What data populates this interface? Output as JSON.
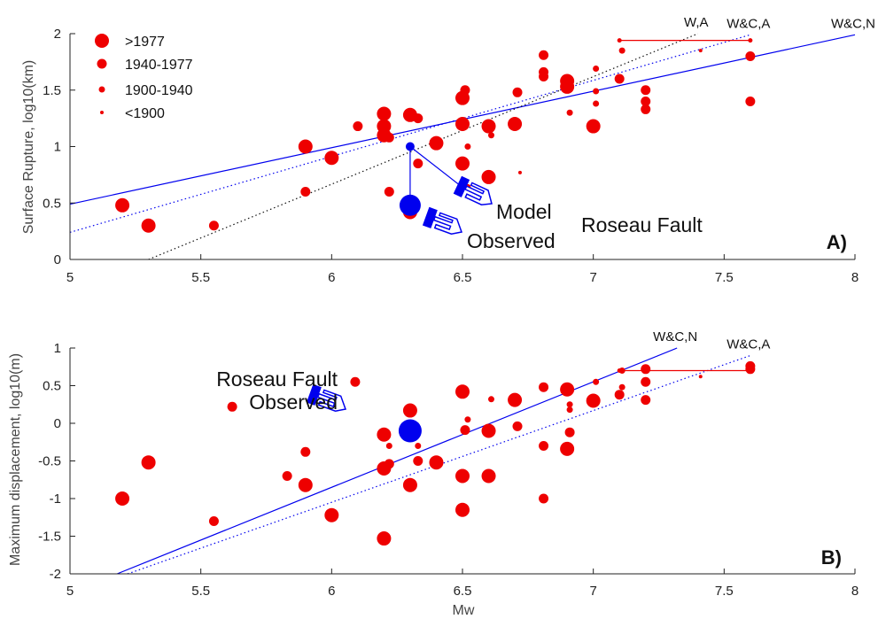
{
  "chart_data": [
    {
      "type": "scatter",
      "panel_label": "A)",
      "xlim": [
        5,
        8
      ],
      "ylim": [
        0,
        2
      ],
      "xticks": [
        "5",
        "5.5",
        "6",
        "6.5",
        "7",
        "7.5",
        "8"
      ],
      "yticks": [
        "0",
        "0.5",
        "1",
        "1.5",
        "2"
      ],
      "xlabel": "",
      "ylabel": "Surface Rupture, log10(km)",
      "legend": {
        "placement": "top-left",
        "entries": [
          {
            "label": ">1977",
            "size": "xl"
          },
          {
            "label": "1940-1977",
            "size": "l"
          },
          {
            "label": "1900-1940",
            "size": "m"
          },
          {
            "label": "<1900",
            "size": "s"
          }
        ]
      },
      "points": [
        {
          "x": 5.2,
          "y": 0.48,
          "size": "xl"
        },
        {
          "x": 5.3,
          "y": 0.3,
          "size": "xl"
        },
        {
          "x": 5.55,
          "y": 0.3,
          "size": "l"
        },
        {
          "x": 5.9,
          "y": 1.0,
          "size": "xl"
        },
        {
          "x": 5.9,
          "y": 0.6,
          "size": "l"
        },
        {
          "x": 6.0,
          "y": 0.9,
          "size": "xl"
        },
        {
          "x": 6.1,
          "y": 1.18,
          "size": "l"
        },
        {
          "x": 6.2,
          "y": 1.29,
          "size": "xl"
        },
        {
          "x": 6.2,
          "y": 1.18,
          "size": "xl"
        },
        {
          "x": 6.2,
          "y": 1.1,
          "size": "xl"
        },
        {
          "x": 6.22,
          "y": 1.08,
          "size": "l"
        },
        {
          "x": 6.22,
          "y": 0.6,
          "size": "l"
        },
        {
          "x": 6.3,
          "y": 1.28,
          "size": "xl"
        },
        {
          "x": 6.33,
          "y": 1.25,
          "size": "l"
        },
        {
          "x": 6.33,
          "y": 0.85,
          "size": "l"
        },
        {
          "x": 6.3,
          "y": 0.42,
          "size": "xl"
        },
        {
          "x": 6.4,
          "y": 1.03,
          "size": "xl"
        },
        {
          "x": 6.5,
          "y": 1.43,
          "size": "xl"
        },
        {
          "x": 6.51,
          "y": 1.5,
          "size": "l"
        },
        {
          "x": 6.5,
          "y": 1.2,
          "size": "xl"
        },
        {
          "x": 6.52,
          "y": 1.0,
          "size": "m"
        },
        {
          "x": 6.5,
          "y": 0.85,
          "size": "xl"
        },
        {
          "x": 6.52,
          "y": 0.64,
          "size": "m"
        },
        {
          "x": 6.6,
          "y": 1.18,
          "size": "xl"
        },
        {
          "x": 6.61,
          "y": 1.1,
          "size": "m"
        },
        {
          "x": 6.6,
          "y": 0.73,
          "size": "xl"
        },
        {
          "x": 6.7,
          "y": 1.2,
          "size": "xl"
        },
        {
          "x": 6.71,
          "y": 1.48,
          "size": "l"
        },
        {
          "x": 6.72,
          "y": 0.77,
          "size": "s"
        },
        {
          "x": 6.81,
          "y": 1.81,
          "size": "l"
        },
        {
          "x": 6.81,
          "y": 1.66,
          "size": "l"
        },
        {
          "x": 6.81,
          "y": 1.62,
          "size": "l"
        },
        {
          "x": 6.9,
          "y": 1.58,
          "size": "xl"
        },
        {
          "x": 6.9,
          "y": 1.53,
          "size": "xl"
        },
        {
          "x": 6.91,
          "y": 1.3,
          "size": "m"
        },
        {
          "x": 7.0,
          "y": 1.18,
          "size": "xl"
        },
        {
          "x": 7.01,
          "y": 1.69,
          "size": "m"
        },
        {
          "x": 7.01,
          "y": 1.49,
          "size": "m"
        },
        {
          "x": 7.01,
          "y": 1.38,
          "size": "m"
        },
        {
          "x": 7.1,
          "y": 1.6,
          "size": "l"
        },
        {
          "x": 7.11,
          "y": 1.85,
          "size": "m"
        },
        {
          "x": 7.2,
          "y": 1.5,
          "size": "l"
        },
        {
          "x": 7.2,
          "y": 1.4,
          "size": "l"
        },
        {
          "x": 7.2,
          "y": 1.33,
          "size": "l"
        },
        {
          "x": 7.41,
          "y": 1.85,
          "size": "s"
        },
        {
          "x": 7.6,
          "y": 1.8,
          "size": "l"
        },
        {
          "x": 7.6,
          "y": 1.4,
          "size": "l"
        }
      ],
      "ranges": [
        {
          "x1": 7.1,
          "x2": 7.6,
          "y": 1.94
        }
      ],
      "regression_lines": [
        {
          "label": "W&C,N",
          "style": "solid",
          "x": [
            5.0,
            8.0
          ],
          "y": [
            0.49,
            1.99
          ]
        },
        {
          "label": "W&C,A",
          "style": "dotted",
          "x": [
            5.0,
            7.6
          ],
          "y": [
            0.24,
            1.99
          ]
        },
        {
          "label": "W,A",
          "style": "dotted",
          "x": [
            5.3,
            7.4
          ],
          "y": [
            0.0,
            2.0
          ]
        }
      ],
      "model": {
        "x": 6.3,
        "y": 1.0,
        "label": "Model"
      },
      "observed": {
        "x": 6.3,
        "y": 0.48,
        "label": "Observed"
      },
      "title_annotation": "Roseau Fault"
    },
    {
      "type": "scatter",
      "panel_label": "B)",
      "xlim": [
        5,
        8
      ],
      "ylim": [
        -2,
        1
      ],
      "xticks": [
        "5",
        "5.5",
        "6",
        "6.5",
        "7",
        "7.5",
        "8"
      ],
      "yticks": [
        "1",
        "0.5",
        "0",
        "-0.5",
        "-1",
        "-1.5",
        "-2"
      ],
      "xlabel": "Mw",
      "ylabel": "Maximum displacement, log10(m)",
      "points": [
        {
          "x": 5.2,
          "y": -1.0,
          "size": "xl"
        },
        {
          "x": 5.3,
          "y": -0.52,
          "size": "xl"
        },
        {
          "x": 5.55,
          "y": -1.3,
          "size": "l"
        },
        {
          "x": 5.62,
          "y": 0.22,
          "size": "l"
        },
        {
          "x": 5.83,
          "y": -0.7,
          "size": "l"
        },
        {
          "x": 5.9,
          "y": -0.38,
          "size": "l"
        },
        {
          "x": 5.9,
          "y": -0.82,
          "size": "xl"
        },
        {
          "x": 6.0,
          "y": -1.22,
          "size": "xl"
        },
        {
          "x": 6.09,
          "y": 0.55,
          "size": "l"
        },
        {
          "x": 6.2,
          "y": -0.15,
          "size": "xl"
        },
        {
          "x": 6.22,
          "y": -0.3,
          "size": "m"
        },
        {
          "x": 6.22,
          "y": -0.54,
          "size": "l"
        },
        {
          "x": 6.2,
          "y": -0.6,
          "size": "xl"
        },
        {
          "x": 6.2,
          "y": -1.53,
          "size": "xl"
        },
        {
          "x": 6.3,
          "y": 0.17,
          "size": "xl"
        },
        {
          "x": 6.33,
          "y": -0.3,
          "size": "m"
        },
        {
          "x": 6.33,
          "y": -0.5,
          "size": "l"
        },
        {
          "x": 6.3,
          "y": -0.82,
          "size": "xl"
        },
        {
          "x": 6.4,
          "y": -0.52,
          "size": "xl"
        },
        {
          "x": 6.5,
          "y": 0.42,
          "size": "xl"
        },
        {
          "x": 6.52,
          "y": 0.05,
          "size": "m"
        },
        {
          "x": 6.51,
          "y": -0.09,
          "size": "l"
        },
        {
          "x": 6.5,
          "y": -0.7,
          "size": "xl"
        },
        {
          "x": 6.5,
          "y": -1.15,
          "size": "xl"
        },
        {
          "x": 6.61,
          "y": 0.32,
          "size": "m"
        },
        {
          "x": 6.6,
          "y": -0.1,
          "size": "xl"
        },
        {
          "x": 6.6,
          "y": -0.7,
          "size": "xl"
        },
        {
          "x": 6.7,
          "y": 0.31,
          "size": "xl"
        },
        {
          "x": 6.71,
          "y": -0.04,
          "size": "l"
        },
        {
          "x": 6.81,
          "y": 0.48,
          "size": "l"
        },
        {
          "x": 6.81,
          "y": -0.3,
          "size": "l"
        },
        {
          "x": 6.81,
          "y": -1.0,
          "size": "l"
        },
        {
          "x": 6.9,
          "y": 0.45,
          "size": "xl"
        },
        {
          "x": 6.91,
          "y": 0.25,
          "size": "m"
        },
        {
          "x": 6.91,
          "y": 0.18,
          "size": "m"
        },
        {
          "x": 6.91,
          "y": -0.12,
          "size": "l"
        },
        {
          "x": 6.9,
          "y": -0.34,
          "size": "xl"
        },
        {
          "x": 7.0,
          "y": 0.3,
          "size": "xl"
        },
        {
          "x": 7.01,
          "y": 0.55,
          "size": "m"
        },
        {
          "x": 7.1,
          "y": 0.38,
          "size": "l"
        },
        {
          "x": 7.11,
          "y": 0.48,
          "size": "m"
        },
        {
          "x": 7.11,
          "y": 0.7,
          "size": "m"
        },
        {
          "x": 7.2,
          "y": 0.72,
          "size": "l"
        },
        {
          "x": 7.2,
          "y": 0.55,
          "size": "l"
        },
        {
          "x": 7.2,
          "y": 0.31,
          "size": "l"
        },
        {
          "x": 7.41,
          "y": 0.62,
          "size": "s"
        },
        {
          "x": 7.6,
          "y": 0.72,
          "size": "l"
        },
        {
          "x": 7.6,
          "y": 0.76,
          "size": "l"
        }
      ],
      "ranges": [
        {
          "x1": 7.1,
          "x2": 7.6,
          "y": 0.7
        }
      ],
      "regression_lines": [
        {
          "label": "W&C,N",
          "style": "solid",
          "x": [
            5.18,
            7.32
          ],
          "y": [
            -2.0,
            1.0
          ]
        },
        {
          "label": "W&C,A",
          "style": "dotted",
          "x": [
            5.22,
            7.6
          ],
          "y": [
            -2.0,
            0.9
          ]
        }
      ],
      "observed": {
        "x": 6.3,
        "y": -0.1,
        "label": "Observed"
      },
      "title_annotation": "Roseau Fault"
    }
  ],
  "colors": {
    "data_red": "#ee0000",
    "fault_blue": "#0000ee",
    "axes": "#222222"
  }
}
